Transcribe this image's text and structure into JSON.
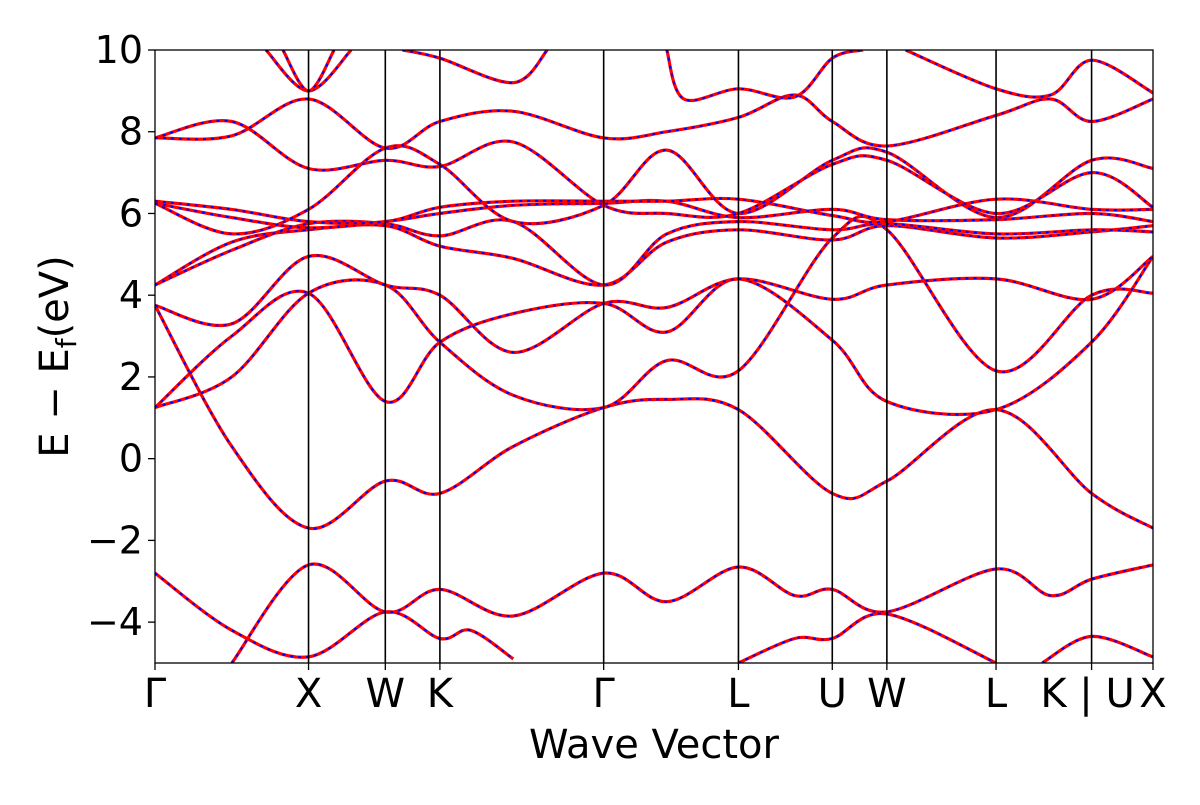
{
  "chart_data": {
    "type": "line",
    "title": "",
    "xlabel": "Wave Vector",
    "ylabel": "E − E",
    "ylabel_subscript": "f",
    "ylabel_unit": "(eV)",
    "ylim": [
      -5,
      10
    ],
    "yticks": [
      -4,
      -2,
      0,
      2,
      4,
      6,
      8,
      10
    ],
    "ytick_labels": [
      "−4",
      "−2",
      "0",
      "2",
      "4",
      "6",
      "8",
      "10"
    ],
    "xlim": [
      0,
      5.85
    ],
    "kpoints": [
      {
        "label": "Γ",
        "x": 0.0
      },
      {
        "label": "X",
        "x": 0.9
      },
      {
        "label": "W",
        "x": 1.35
      },
      {
        "label": "K",
        "x": 1.67
      },
      {
        "label": "Γ",
        "x": 2.63
      },
      {
        "label": "L",
        "x": 3.42
      },
      {
        "label": "U",
        "x": 3.97
      },
      {
        "label": "W",
        "x": 4.29
      },
      {
        "label": "L",
        "x": 4.93
      },
      {
        "label": "K | U",
        "x": 5.49
      },
      {
        "label": "X",
        "x": 5.85
      }
    ],
    "grid": false,
    "line_colors": {
      "primary": "#ff0000",
      "overlay": "#0000ff"
    },
    "series": [
      {
        "values": [
          [
            0,
            -2.8
          ],
          [
            0.45,
            -4.2
          ],
          [
            0.9,
            -4.85
          ],
          [
            1.35,
            -3.75
          ],
          [
            1.67,
            -4.4
          ],
          [
            1.85,
            -4.2
          ],
          [
            2.1,
            -4.9
          ]
        ]
      },
      {
        "values": [
          [
            0.45,
            -5
          ],
          [
            0.9,
            -2.6
          ],
          [
            1.35,
            -3.75
          ],
          [
            1.67,
            -3.2
          ],
          [
            2.1,
            -3.85
          ],
          [
            2.63,
            -2.8
          ],
          [
            3.0,
            -3.5
          ],
          [
            3.42,
            -2.65
          ],
          [
            3.75,
            -3.35
          ],
          [
            3.97,
            -3.2
          ],
          [
            4.29,
            -3.75
          ],
          [
            4.93,
            -2.7
          ],
          [
            5.25,
            -3.35
          ],
          [
            5.49,
            -2.95
          ],
          [
            5.85,
            -2.6
          ]
        ]
      },
      {
        "values": [
          [
            3.42,
            -5
          ],
          [
            3.75,
            -4.4
          ],
          [
            3.97,
            -4.4
          ],
          [
            4.29,
            -3.8
          ],
          [
            4.93,
            -5
          ]
        ]
      },
      {
        "values": [
          [
            5.2,
            -5
          ],
          [
            5.49,
            -4.35
          ],
          [
            5.85,
            -4.85
          ]
        ]
      },
      {
        "values": [
          [
            0,
            3.75
          ],
          [
            0.45,
            0.3
          ],
          [
            0.9,
            -1.7
          ],
          [
            1.35,
            -0.55
          ],
          [
            1.67,
            -0.85
          ],
          [
            2.1,
            0.3
          ],
          [
            2.63,
            1.25
          ],
          [
            3.0,
            1.45
          ],
          [
            3.42,
            1.2
          ],
          [
            3.97,
            -0.85
          ],
          [
            4.29,
            -0.55
          ],
          [
            4.93,
            1.2
          ],
          [
            5.49,
            -0.85
          ],
          [
            5.85,
            -1.7
          ]
        ]
      },
      {
        "values": [
          [
            0,
            1.25
          ],
          [
            0.45,
            2.0
          ],
          [
            0.9,
            4.05
          ],
          [
            1.35,
            4.25
          ],
          [
            1.67,
            2.85
          ],
          [
            2.1,
            1.55
          ],
          [
            2.63,
            1.25
          ],
          [
            3.0,
            2.4
          ],
          [
            3.42,
            2.15
          ],
          [
            3.97,
            5.4
          ],
          [
            4.29,
            5.6
          ],
          [
            4.93,
            2.15
          ],
          [
            5.49,
            4.0
          ],
          [
            5.85,
            4.05
          ]
        ]
      },
      {
        "values": [
          [
            0,
            1.25
          ],
          [
            0.45,
            3.0
          ],
          [
            0.9,
            4.05
          ],
          [
            1.35,
            1.4
          ],
          [
            1.67,
            2.85
          ],
          [
            2.1,
            3.55
          ],
          [
            2.63,
            3.8
          ],
          [
            3.0,
            3.1
          ],
          [
            3.42,
            4.4
          ],
          [
            3.97,
            2.9
          ],
          [
            4.29,
            1.4
          ],
          [
            4.93,
            1.2
          ],
          [
            5.49,
            2.85
          ],
          [
            5.85,
            4.95
          ]
        ]
      },
      {
        "values": [
          [
            0,
            3.75
          ],
          [
            0.45,
            3.3
          ],
          [
            0.9,
            4.95
          ],
          [
            1.35,
            4.25
          ],
          [
            1.67,
            4.0
          ],
          [
            2.1,
            2.6
          ],
          [
            2.63,
            3.8
          ],
          [
            3.0,
            3.7
          ],
          [
            3.42,
            4.4
          ],
          [
            3.97,
            3.9
          ],
          [
            4.29,
            4.25
          ],
          [
            4.93,
            4.4
          ],
          [
            5.49,
            3.9
          ],
          [
            5.85,
            4.95
          ]
        ]
      },
      {
        "values": [
          [
            0,
            4.25
          ],
          [
            0.45,
            5.3
          ],
          [
            0.9,
            5.6
          ],
          [
            1.35,
            5.7
          ],
          [
            1.67,
            5.2
          ],
          [
            2.1,
            4.9
          ],
          [
            2.63,
            4.25
          ],
          [
            3.0,
            5.3
          ],
          [
            3.42,
            5.6
          ],
          [
            3.97,
            5.35
          ],
          [
            4.29,
            5.7
          ],
          [
            4.93,
            5.4
          ],
          [
            5.49,
            5.55
          ],
          [
            5.85,
            5.7
          ]
        ]
      },
      {
        "values": [
          [
            0,
            4.25
          ],
          [
            0.45,
            5.1
          ],
          [
            0.9,
            5.75
          ],
          [
            1.35,
            5.75
          ],
          [
            1.67,
            5.45
          ],
          [
            2.1,
            5.8
          ],
          [
            2.63,
            4.25
          ],
          [
            3.0,
            5.5
          ],
          [
            3.42,
            5.8
          ],
          [
            3.97,
            5.6
          ],
          [
            4.29,
            5.75
          ],
          [
            4.93,
            5.5
          ],
          [
            5.49,
            5.6
          ],
          [
            5.85,
            5.55
          ]
        ]
      },
      {
        "values": [
          [
            0,
            6.25
          ],
          [
            0.45,
            5.9
          ],
          [
            0.9,
            5.65
          ],
          [
            1.35,
            5.8
          ],
          [
            1.67,
            6.0
          ],
          [
            2.1,
            6.2
          ],
          [
            2.63,
            6.25
          ],
          [
            3.0,
            6.3
          ],
          [
            3.42,
            5.9
          ],
          [
            3.97,
            6.1
          ],
          [
            4.29,
            5.85
          ],
          [
            4.93,
            5.85
          ],
          [
            5.49,
            6.0
          ],
          [
            5.85,
            5.8
          ]
        ]
      },
      {
        "values": [
          [
            0,
            6.3
          ],
          [
            0.45,
            6.1
          ],
          [
            0.9,
            5.8
          ],
          [
            1.35,
            5.8
          ],
          [
            1.67,
            6.15
          ],
          [
            2.1,
            6.3
          ],
          [
            2.63,
            6.3
          ],
          [
            3.0,
            6.3
          ],
          [
            3.42,
            6.35
          ],
          [
            3.97,
            5.95
          ],
          [
            4.29,
            5.8
          ],
          [
            4.93,
            6.35
          ],
          [
            5.49,
            6.1
          ],
          [
            5.85,
            6.1
          ]
        ]
      },
      {
        "values": [
          [
            0,
            6.25
          ],
          [
            0.45,
            5.5
          ],
          [
            0.9,
            6.1
          ],
          [
            1.35,
            7.6
          ],
          [
            1.67,
            7.2
          ],
          [
            2.1,
            5.8
          ],
          [
            2.63,
            6.2
          ],
          [
            3.0,
            7.55
          ],
          [
            3.42,
            6.0
          ],
          [
            3.97,
            7.3
          ],
          [
            4.29,
            7.5
          ],
          [
            4.93,
            5.9
          ],
          [
            5.49,
            7.3
          ],
          [
            5.85,
            7.1
          ]
        ]
      },
      {
        "values": [
          [
            0,
            7.85
          ],
          [
            0.45,
            8.25
          ],
          [
            0.9,
            7.1
          ],
          [
            1.35,
            7.3
          ],
          [
            1.67,
            7.15
          ],
          [
            2.1,
            7.75
          ],
          [
            2.63,
            6.2
          ],
          [
            3.0,
            6.0
          ],
          [
            3.42,
            6.0
          ],
          [
            3.97,
            7.2
          ],
          [
            4.29,
            7.3
          ],
          [
            4.93,
            6.0
          ],
          [
            5.49,
            7.0
          ],
          [
            5.85,
            6.15
          ]
        ]
      },
      {
        "values": [
          [
            0,
            7.85
          ],
          [
            0.45,
            7.9
          ],
          [
            0.9,
            8.8
          ],
          [
            1.35,
            7.6
          ],
          [
            1.67,
            8.25
          ],
          [
            2.1,
            8.5
          ],
          [
            2.63,
            7.85
          ],
          [
            3.0,
            8.0
          ],
          [
            3.42,
            8.35
          ],
          [
            3.75,
            8.9
          ],
          [
            3.97,
            8.25
          ],
          [
            4.29,
            7.65
          ],
          [
            4.93,
            8.4
          ],
          [
            5.25,
            8.8
          ],
          [
            5.49,
            8.25
          ],
          [
            5.85,
            8.8
          ]
        ]
      },
      {
        "values": [
          [
            0.65,
            10
          ],
          [
            0.9,
            9.0
          ],
          [
            1.15,
            10
          ]
        ]
      },
      {
        "values": [
          [
            0.75,
            10
          ],
          [
            0.9,
            9.0
          ],
          [
            1.05,
            10
          ]
        ]
      },
      {
        "values": [
          [
            1.45,
            10
          ],
          [
            1.67,
            9.8
          ],
          [
            2.1,
            9.2
          ],
          [
            2.3,
            10
          ]
        ]
      },
      {
        "values": [
          [
            3.0,
            10
          ],
          [
            3.1,
            8.8
          ],
          [
            3.42,
            9.05
          ],
          [
            3.75,
            8.85
          ],
          [
            3.97,
            9.8
          ],
          [
            4.15,
            10
          ]
        ]
      },
      {
        "values": [
          [
            4.4,
            10
          ],
          [
            4.93,
            9.05
          ],
          [
            5.25,
            8.9
          ],
          [
            5.49,
            9.75
          ],
          [
            5.85,
            8.95
          ]
        ]
      }
    ]
  }
}
